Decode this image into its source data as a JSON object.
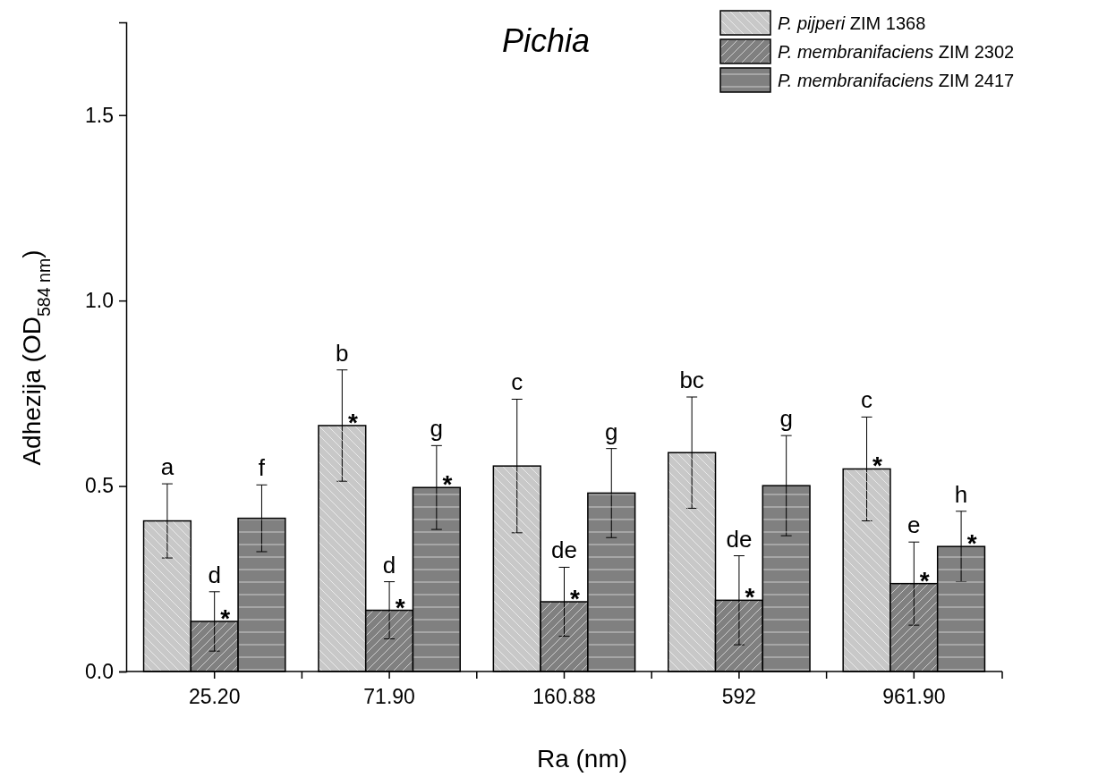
{
  "chart_data": {
    "type": "bar",
    "title": "Pichia",
    "xlabel": "Ra (nm)",
    "ylabel": "Adhezija (OD$_{584 nm}$)",
    "categories": [
      "25.20",
      "71.90",
      "160.88",
      "592",
      "961.90"
    ],
    "series": [
      {
        "name": "P. pijperi ZIM 1368",
        "color": "#c8c8c8",
        "values": [
          0.406,
          0.663,
          0.554,
          0.59,
          0.546
        ],
        "errors": [
          0.1,
          0.15,
          0.18,
          0.15,
          0.14
        ]
      },
      {
        "name": "P. membranifaciens ZIM 2302",
        "color": "#808080",
        "values": [
          0.135,
          0.165,
          0.188,
          0.192,
          0.237
        ],
        "errors": [
          0.08,
          0.077,
          0.093,
          0.12,
          0.112
        ]
      },
      {
        "name": "P. membranifaciens ZIM 2417",
        "color": "#808080",
        "values": [
          0.413,
          0.496,
          0.481,
          0.501,
          0.337
        ],
        "errors": [
          0.09,
          0.113,
          0.12,
          0.135,
          0.095
        ]
      }
    ],
    "ylim": [
      0,
      1.75
    ],
    "yticks": [
      {
        "value": 0,
        "label": "0.0"
      },
      0.5,
      {
        "value": 1,
        "label": "1.0"
      },
      1.5
    ],
    "legend": "top right",
    "annotations": [
      {
        "text": "a",
        "y": 0.506
      },
      {
        "text": "d",
        "x": "25.20",
        "y": 0.215
      },
      {
        "text": "*",
        "x": "25.20",
        "y": 0.135
      },
      {
        "text": "f",
        "y": 0.503
      },
      {
        "text": "b",
        "y": 0.813
      },
      {
        "text": "*",
        "y": 0.663
      },
      {
        "text": "d",
        "x": "71.90",
        "y": 0.242
      },
      {
        "text": "*",
        "x": "71.90",
        "y": 0.165
      },
      {
        "text": "g",
        "y": 0.609
      },
      {
        "text": "*",
        "y": 0.496
      },
      {
        "text": "c",
        "y": 0.734
      },
      {
        "text": "de",
        "x": "160.88",
        "y": 0.281
      },
      {
        "text": "*",
        "x": "160.88",
        "y": 0.188
      },
      {
        "text": "g",
        "y": 0.601
      },
      {
        "text": "bc",
        "y": 0.74
      },
      {
        "text": "de",
        "x": "592",
        "y": 0.312
      },
      {
        "text": "*",
        "x": "592",
        "y": 0.192
      },
      {
        "text": "g",
        "y": 0.636
      },
      {
        "text": "c",
        "y": 0.686
      },
      {
        "text": "*",
        "y": 0.546
      },
      {
        "text": "e",
        "x": "961.90",
        "y": 0.349
      },
      {
        "text": "*",
        "x": "961.90",
        "y": 0.237
      },
      {
        "text": "h",
        "y": 0.432
      },
      {
        "text": "*",
        "y": 0.337
      }
    ]
  }
}
